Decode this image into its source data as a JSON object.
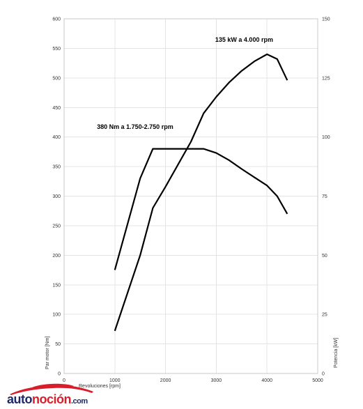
{
  "chart_data": {
    "type": "line",
    "xlabel": "Revoluciones [rpm]",
    "ylabel": "Par motor [Nm]",
    "y2label": "Potencia [kW]",
    "xlim": [
      0,
      5000
    ],
    "ylim": [
      0,
      600
    ],
    "y2lim": [
      0,
      150
    ],
    "grid": true,
    "x_ticks": [
      "0",
      "1000",
      "2000",
      "3000",
      "4000",
      "5000"
    ],
    "y_ticks": [
      "0",
      "50",
      "100",
      "150",
      "200",
      "250",
      "300",
      "350",
      "400",
      "450",
      "500",
      "550",
      "600"
    ],
    "y2_ticks": [
      "0",
      "25",
      "50",
      "75",
      "100",
      "125",
      "150"
    ],
    "series": [
      {
        "axis": "left",
        "x": [
          1000,
          1500,
          1750,
          2000,
          2500,
          2750,
          3000,
          3250,
          3500,
          3750,
          4000,
          4200,
          4400
        ],
        "y": [
          175,
          330,
          380,
          380,
          380,
          380,
          373,
          361,
          346,
          332,
          318,
          300,
          270
        ]
      },
      {
        "axis": "right",
        "x": [
          1000,
          1500,
          1750,
          2000,
          2500,
          2750,
          3000,
          3250,
          3500,
          3750,
          4000,
          4200,
          4400
        ],
        "y": [
          18,
          50,
          70,
          79,
          98,
          110,
          117,
          123,
          128,
          132,
          135,
          133,
          124
        ]
      }
    ],
    "annotations": [
      {
        "text": "135 kW a 4.000 rpm",
        "x": 3550,
        "y": 561
      },
      {
        "text": "380 Nm a 1.750-2.750 rpm",
        "x": 1400,
        "y": 414
      }
    ]
  },
  "logo": {
    "part1": "auto",
    "part2": "noción",
    "part3": ".com"
  }
}
